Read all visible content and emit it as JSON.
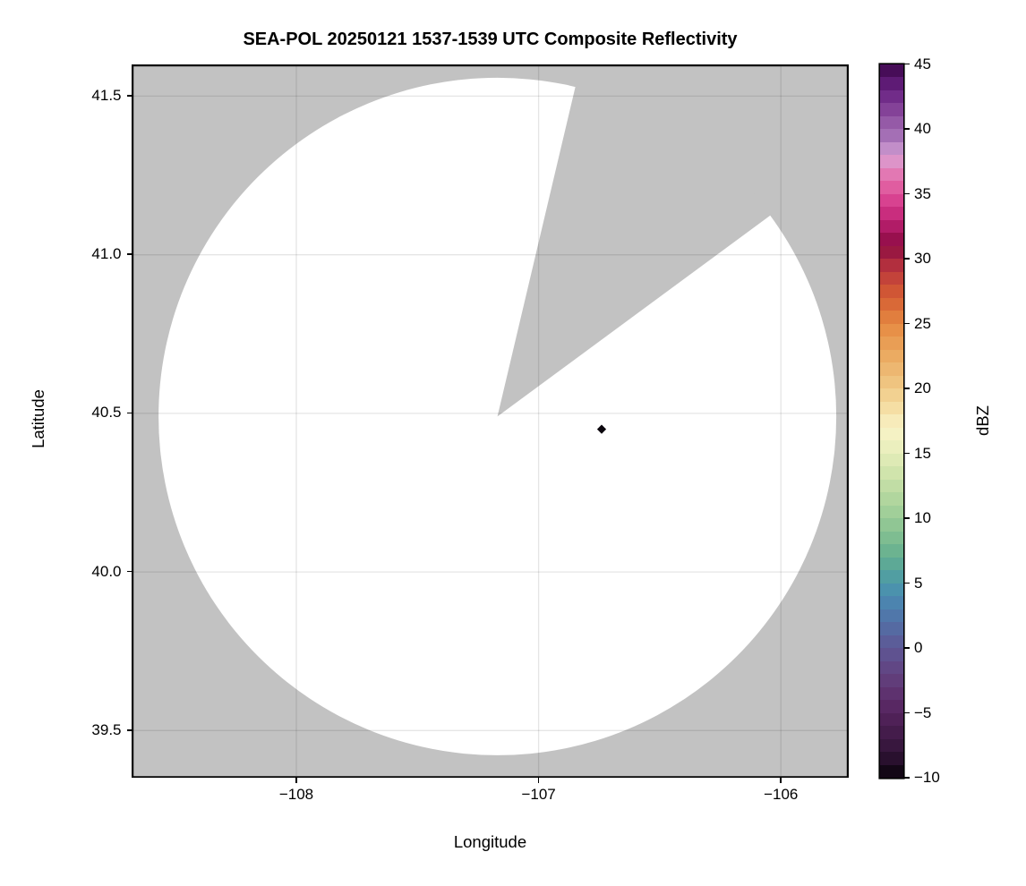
{
  "figure": {
    "background": "#ffffff"
  },
  "chart_data": {
    "type": "heatmap",
    "subtype": "radar-composite-reflectivity-map",
    "title": "SEA-POL 20250121 1537-1539 UTC Composite Reflectivity",
    "xlabel": "Longitude",
    "ylabel": "Latitude",
    "xlim": [
      -108.68,
      -105.72
    ],
    "ylim": [
      39.35,
      41.6
    ],
    "x_ticks": {
      "values": [
        -108,
        -107,
        -106
      ],
      "labels": [
        "−108",
        "−107",
        "−106"
      ]
    },
    "y_ticks": {
      "values": [
        41.5,
        41.0,
        40.5,
        40.0,
        39.5
      ],
      "labels": [
        "41.5",
        "41.0",
        "40.5",
        "40.0",
        "39.5"
      ]
    },
    "grid": true,
    "colors": {
      "no_data_gray": "#c2c2c2",
      "coverage_white": "#ffffff",
      "grid_line": "rgba(0,0,0,0.10)",
      "spine": "#000000"
    },
    "radar_coverage": {
      "center_lon": -107.17,
      "center_lat": 40.49,
      "radius_deg_lat": 1.068,
      "blocked_sector_azimuth_deg": [
        13.3,
        53.6
      ],
      "description": "White disk = radar scan coverage; gray = no data, including a wedge-shaped blocked sector north-northeast of the radar."
    },
    "echoes": [
      {
        "lon": -106.74,
        "lat": 40.45,
        "approx_dbz": -9,
        "shape": "diamond",
        "color": "#0b060d"
      }
    ],
    "colorbar": {
      "label": "dBZ",
      "vmin": -10,
      "vmax": 45,
      "block_size_dbz": 1,
      "tick_values": [
        45,
        40,
        35,
        30,
        25,
        20,
        15,
        10,
        5,
        0,
        -5,
        -10
      ],
      "tick_labels": [
        "45",
        "40",
        "35",
        "30",
        "25",
        "20",
        "15",
        "10",
        "5",
        "0",
        "−5",
        "−10"
      ],
      "stops": [
        {
          "v": -10,
          "c": "#060208"
        },
        {
          "v": -9,
          "c": "#200c23"
        },
        {
          "v": -8,
          "c": "#321438"
        },
        {
          "v": -6,
          "c": "#4a1e51"
        },
        {
          "v": -5,
          "c": "#54245d"
        },
        {
          "v": -4,
          "c": "#5c2c69"
        },
        {
          "v": -2,
          "c": "#624280"
        },
        {
          "v": 0,
          "c": "#5e5795"
        },
        {
          "v": 2,
          "c": "#5270a6"
        },
        {
          "v": 3,
          "c": "#4d7dae"
        },
        {
          "v": 4,
          "c": "#4a8bb0"
        },
        {
          "v": 5,
          "c": "#4b98a9"
        },
        {
          "v": 6,
          "c": "#56a39a"
        },
        {
          "v": 7,
          "c": "#63ae91"
        },
        {
          "v": 8,
          "c": "#75b88f"
        },
        {
          "v": 10,
          "c": "#99cb96"
        },
        {
          "v": 12,
          "c": "#b9d9a1"
        },
        {
          "v": 14,
          "c": "#d8e7b0"
        },
        {
          "v": 16,
          "c": "#f1f2c2"
        },
        {
          "v": 17,
          "c": "#f8f2c5"
        },
        {
          "v": 18,
          "c": "#f6e4ae"
        },
        {
          "v": 20,
          "c": "#f0ca87"
        },
        {
          "v": 22,
          "c": "#ecb169"
        },
        {
          "v": 24,
          "c": "#e8974e"
        },
        {
          "v": 25,
          "c": "#e58842"
        },
        {
          "v": 27,
          "c": "#d55f33"
        },
        {
          "v": 28,
          "c": "#ca4c37"
        },
        {
          "v": 29,
          "c": "#bc3a3c"
        },
        {
          "v": 30,
          "c": "#a7243f"
        },
        {
          "v": 31,
          "c": "#8d0e42"
        },
        {
          "v": 32,
          "c": "#a2125a"
        },
        {
          "v": 33,
          "c": "#c02573"
        },
        {
          "v": 34,
          "c": "#d23488"
        },
        {
          "v": 35,
          "c": "#dd4f98"
        },
        {
          "v": 36,
          "c": "#e26aa8"
        },
        {
          "v": 37,
          "c": "#e186bd"
        },
        {
          "v": 38,
          "c": "#d9a2d4"
        },
        {
          "v": 39,
          "c": "#ab7abd"
        },
        {
          "v": 40,
          "c": "#9c64ad"
        },
        {
          "v": 41,
          "c": "#8d4fa0"
        },
        {
          "v": 42,
          "c": "#7a3590"
        },
        {
          "v": 43,
          "c": "#672381"
        },
        {
          "v": 44,
          "c": "#541368"
        },
        {
          "v": 45,
          "c": "#3a0647"
        }
      ]
    }
  }
}
